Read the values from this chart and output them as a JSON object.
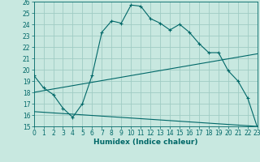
{
  "xlabel": "Humidex (Indice chaleur)",
  "bg_color": "#c8e8e0",
  "grid_color": "#a0ccc4",
  "line_color": "#006868",
  "xlim": [
    0,
    23
  ],
  "ylim": [
    15,
    26
  ],
  "xticks": [
    0,
    1,
    2,
    3,
    4,
    5,
    6,
    7,
    8,
    9,
    10,
    11,
    12,
    13,
    14,
    15,
    16,
    17,
    18,
    19,
    20,
    21,
    22,
    23
  ],
  "yticks": [
    15,
    16,
    17,
    18,
    19,
    20,
    21,
    22,
    23,
    24,
    25,
    26
  ],
  "series1_x": [
    0,
    1,
    2,
    3,
    4,
    5,
    6,
    7,
    8,
    9,
    10,
    11,
    12,
    13,
    14,
    15,
    16,
    17,
    18,
    19,
    20,
    21,
    22,
    23
  ],
  "series1_y": [
    19.5,
    18.4,
    17.8,
    16.6,
    15.8,
    17.0,
    19.5,
    23.3,
    24.3,
    24.1,
    25.7,
    25.6,
    24.5,
    24.1,
    23.5,
    24.0,
    23.3,
    22.3,
    21.5,
    21.5,
    19.9,
    19.0,
    17.5,
    14.9
  ],
  "series2_x": [
    0,
    23
  ],
  "series2_y": [
    18.0,
    21.4
  ],
  "series3_x": [
    0,
    23
  ],
  "series3_y": [
    16.3,
    15.0
  ],
  "xlabel_fontsize": 6.5,
  "tick_fontsize": 5.5
}
